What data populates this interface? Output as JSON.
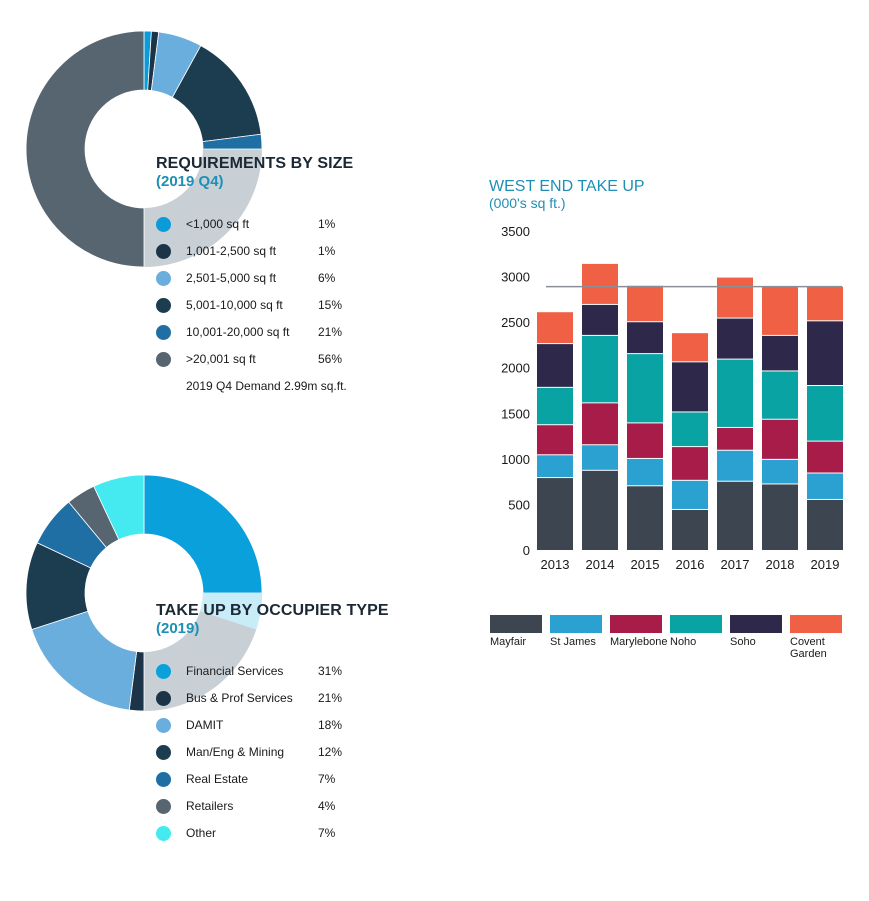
{
  "donut_size": {
    "title": "REQUIREMENTS BY SIZE",
    "subtitle": "(2019 Q4)",
    "note": "2019 Q4 Demand 2.99m sq.ft."
  },
  "donut_occupier": {
    "title": "TAKE UP BY OCCUPIER TYPE",
    "subtitle": "(2019)"
  },
  "bar_chart": {
    "title": "WEST END TAKE UP",
    "subtitle": "(000's sq ft.)"
  },
  "chart_data": [
    {
      "type": "pie",
      "title": "REQUIREMENTS BY SIZE",
      "subtitle": "(2019 Q4)",
      "labels": [
        "<1,000 sq ft",
        "1,001-2,500 sq ft",
        "2,501-5,000 sq ft",
        "5,001-10,000 sq ft",
        "10,001-20,000 sq ft",
        ">20,001 sq ft"
      ],
      "value_labels": [
        "1%",
        "1%",
        "6%",
        "15%",
        "21%",
        "56%"
      ],
      "values": [
        1,
        1,
        6,
        15,
        21,
        56
      ],
      "colors": [
        "#0a9bd8",
        "#1c3448",
        "#6aaedd",
        "#1c3c50",
        "#1f6fa4",
        "#566570"
      ],
      "hole_color": "#c8d0d6",
      "annotation": "2019 Q4 Demand 2.99m sq.ft."
    },
    {
      "type": "pie",
      "title": "TAKE UP BY OCCUPIER TYPE",
      "subtitle": "(2019)",
      "labels": [
        "Financial Services",
        "Bus & Prof Services",
        "DAMIT",
        "Man/Eng & Mining",
        "Real Estate",
        "Retailers",
        "Other"
      ],
      "value_labels": [
        "31%",
        "21%",
        "18%",
        "12%",
        "7%",
        "4%",
        "7%"
      ],
      "values": [
        31,
        21,
        18,
        12,
        7,
        4,
        7
      ],
      "colors": [
        "#0aa0dc",
        "#1c3448",
        "#6aaedd",
        "#1c3c50",
        "#1f6fa4",
        "#566570",
        "#44eaf0"
      ],
      "hole_color": "#c8d0d6",
      "alt_colors": [
        "#c8ecf8",
        "#c8d0d6"
      ]
    },
    {
      "type": "bar",
      "stacked": true,
      "title": "WEST END TAKE UP",
      "subtitle": "(000's sq ft.)",
      "categories": [
        "2013",
        "2014",
        "2015",
        "2016",
        "2017",
        "2018",
        "2019"
      ],
      "ylim": [
        0,
        3500
      ],
      "yticks": [
        0,
        500,
        1000,
        1500,
        2000,
        2500,
        3000,
        3500
      ],
      "reference_line": 2900,
      "series": [
        {
          "name": "Mayfair",
          "color": "#3d4550",
          "values": [
            800,
            880,
            710,
            450,
            760,
            730,
            560
          ]
        },
        {
          "name": "St James",
          "color": "#2aa1d1",
          "values": [
            250,
            280,
            300,
            320,
            340,
            270,
            290
          ]
        },
        {
          "name": "Marylebone",
          "color": "#a81c4a",
          "values": [
            330,
            460,
            390,
            370,
            250,
            440,
            350
          ]
        },
        {
          "name": "Noho",
          "color": "#0aa3a3",
          "values": [
            410,
            740,
            760,
            380,
            750,
            530,
            610
          ]
        },
        {
          "name": "Soho",
          "color": "#2e284a",
          "values": [
            480,
            340,
            350,
            550,
            450,
            390,
            710
          ]
        },
        {
          "name": "Covent Garden",
          "color": "#ef6044",
          "values": [
            350,
            450,
            400,
            320,
            450,
            540,
            380
          ]
        }
      ],
      "legend_labels": [
        "Mayfair",
        "St James",
        "Marylebone",
        "Noho",
        "Soho",
        "Covent\nGarden"
      ]
    }
  ]
}
